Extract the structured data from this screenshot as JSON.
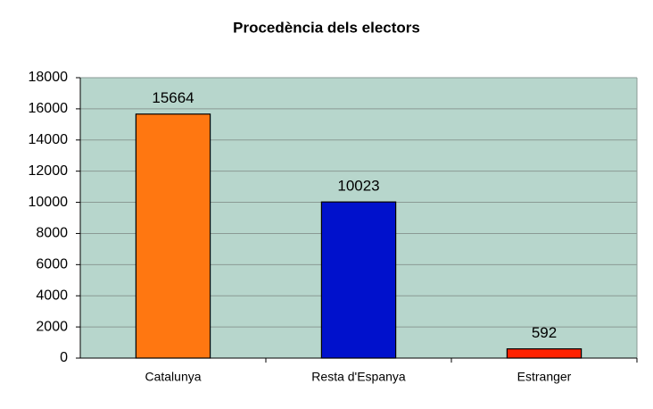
{
  "chart_data": {
    "type": "bar",
    "title": "Procedència dels electors",
    "categories": [
      "Catalunya",
      "Resta d'Espanya",
      "Estranger"
    ],
    "values": [
      15664,
      10023,
      592
    ],
    "colors": [
      "#ff7711",
      "#0011cc",
      "#ff2200"
    ],
    "ylim": [
      0,
      18000
    ],
    "yticks": [
      0,
      2000,
      4000,
      6000,
      8000,
      10000,
      12000,
      14000,
      16000,
      18000
    ],
    "grid": true
  }
}
